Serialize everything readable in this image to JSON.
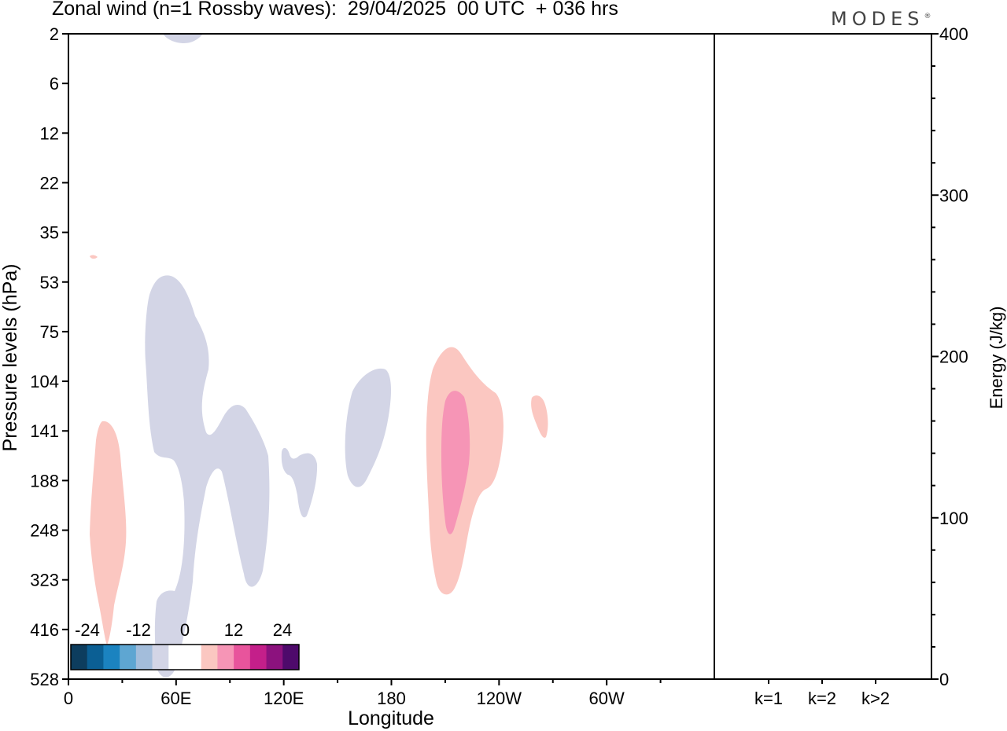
{
  "title": "Zonal wind (n=1 Rossby waves):  29/04/2025  00 UTC  + 036 hrs",
  "logo": "MODES",
  "chart_data": [
    {
      "type": "heatmap",
      "title": "Zonal wind (n=1 Rossby waves):  29/04/2025  00 UTC  + 036 hrs",
      "xlabel": "Longitude",
      "ylabel": "Pressure levels (hPa)",
      "x_ticks": [
        "0",
        "60E",
        "120E",
        "180",
        "120W",
        "60W"
      ],
      "y_ticks": [
        "2",
        "6",
        "12",
        "22",
        "35",
        "53",
        "75",
        "104",
        "141",
        "188",
        "248",
        "323",
        "416",
        "528"
      ],
      "colorbar": {
        "ticks": [
          "-24",
          "-12",
          "0",
          "12",
          "24"
        ],
        "colors": [
          "#0d3d5e",
          "#0b5f94",
          "#1b83c0",
          "#5ea6d2",
          "#a3bddb",
          "#d3d5e6",
          "#ffffff",
          "#ffffff",
          "#fbc7c1",
          "#f695b6",
          "#e8549c",
          "#c41f8a",
          "#8c127e",
          "#4e0a6b"
        ]
      },
      "regions": [
        {
          "name": "weak-easterly-stratosphere",
          "color": "#d3d5e6",
          "lon": 62,
          "level": "2"
        },
        {
          "name": "easterly-lower-stratosphere",
          "color": "#d3d5e6",
          "lon": 60,
          "level": "75-416"
        },
        {
          "name": "easterly-upper-troposphere",
          "color": "#d3d5e6",
          "lon": 100,
          "level": "141-323"
        },
        {
          "name": "easterly-small",
          "color": "#d3d5e6",
          "lon": 128,
          "level": "141-248"
        },
        {
          "name": "easterly-dateline",
          "color": "#d3d5e6",
          "lon": 163,
          "level": "104-188"
        },
        {
          "name": "westerly-west",
          "color": "#fbc7c1",
          "lon": 20,
          "level": "141-416"
        },
        {
          "name": "westerly-east-pacific",
          "color": "#fbc7c1",
          "lon": -155,
          "level": "75-323"
        },
        {
          "name": "westerly-core",
          "color": "#f695b6",
          "lon": -155,
          "level": "104-248"
        },
        {
          "name": "westerly-small",
          "color": "#fbc7c1",
          "lon": -115,
          "level": "104-141"
        },
        {
          "name": "westerly-speck",
          "color": "#fbc7c1",
          "lon": 13,
          "level": "35"
        }
      ]
    },
    {
      "type": "bar",
      "ylabel": "Energy (J/kg)",
      "categories": [
        "k=1",
        "k=2",
        "k>2"
      ],
      "values": [
        0.3,
        0.2,
        0.4
      ],
      "ylim": [
        0,
        400
      ],
      "y_ticks": [
        "0",
        "100",
        "200",
        "300",
        "400"
      ]
    }
  ]
}
